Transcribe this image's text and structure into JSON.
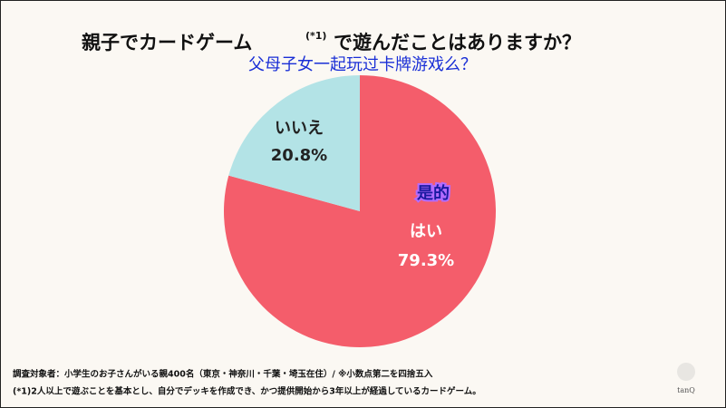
{
  "chart_data": {
    "type": "pie",
    "title": [
      "親子でカードゲーム",
      "(*1)",
      "で遊んだことはありますか？"
    ],
    "categories": [
      "はい",
      "いいえ"
    ],
    "values": [
      79.3,
      20.8
    ],
    "value_labels": [
      "79.3%",
      "20.8%"
    ],
    "colors": [
      "#f45d6b",
      "#b3e3e6"
    ],
    "annotations": [
      "父母子女一起玩过卡牌游戏么？",
      "是的"
    ],
    "notes": [
      "調査対象者：小学生のお子さんがいる親400名（東京・神奈川・千葉・埼玉在住）/ ※小数点第二を四捨五入",
      "(*1)2人以上で遊ぶことを基本とし、自分でデッキを作成でき、かつ提供開始から3年以上が経過しているカードゲーム。"
    ],
    "logo": "tanQ"
  }
}
